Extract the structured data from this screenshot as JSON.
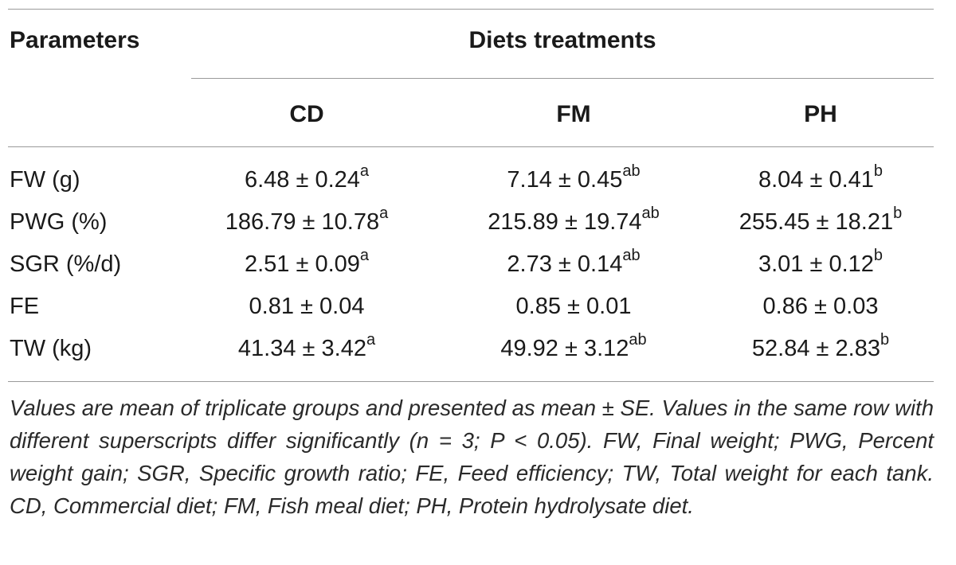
{
  "table": {
    "header_parameters": "Parameters",
    "header_group": "Diets treatments",
    "columns": [
      "CD",
      "FM",
      "PH"
    ],
    "rows": [
      {
        "param": "FW (g)",
        "values": [
          {
            "value": "6.48 ± 0.24",
            "sup": "a"
          },
          {
            "value": "7.14 ± 0.45",
            "sup": "ab"
          },
          {
            "value": "8.04 ± 0.41",
            "sup": "b"
          }
        ]
      },
      {
        "param": "PWG (%)",
        "values": [
          {
            "value": "186.79 ± 10.78",
            "sup": "a"
          },
          {
            "value": "215.89 ± 19.74",
            "sup": "ab"
          },
          {
            "value": "255.45 ± 18.21",
            "sup": "b"
          }
        ]
      },
      {
        "param": "SGR (%/d)",
        "values": [
          {
            "value": "2.51 ± 0.09",
            "sup": "a"
          },
          {
            "value": "2.73 ± 0.14",
            "sup": "ab"
          },
          {
            "value": "3.01 ± 0.12",
            "sup": "b"
          }
        ]
      },
      {
        "param": "FE",
        "values": [
          {
            "value": "0.81 ± 0.04",
            "sup": ""
          },
          {
            "value": "0.85 ± 0.01",
            "sup": ""
          },
          {
            "value": "0.86 ± 0.03",
            "sup": ""
          }
        ]
      },
      {
        "param": "TW (kg)",
        "values": [
          {
            "value": "41.34 ± 3.42",
            "sup": "a"
          },
          {
            "value": "49.92 ± 3.12",
            "sup": "ab"
          },
          {
            "value": "52.84 ± 2.83",
            "sup": "b"
          }
        ]
      }
    ],
    "footnote": "Values are mean of triplicate groups and presented as mean ± SE. Values in the same row with different superscripts differ significantly (n = 3; P < 0.05). FW, Final weight; PWG, Percent weight gain; SGR, Specific growth ratio; FE, Feed efficiency; TW, Total weight for each tank. CD, Commercial diet; FM, Fish meal diet; PH, Protein hydrolysate diet."
  }
}
